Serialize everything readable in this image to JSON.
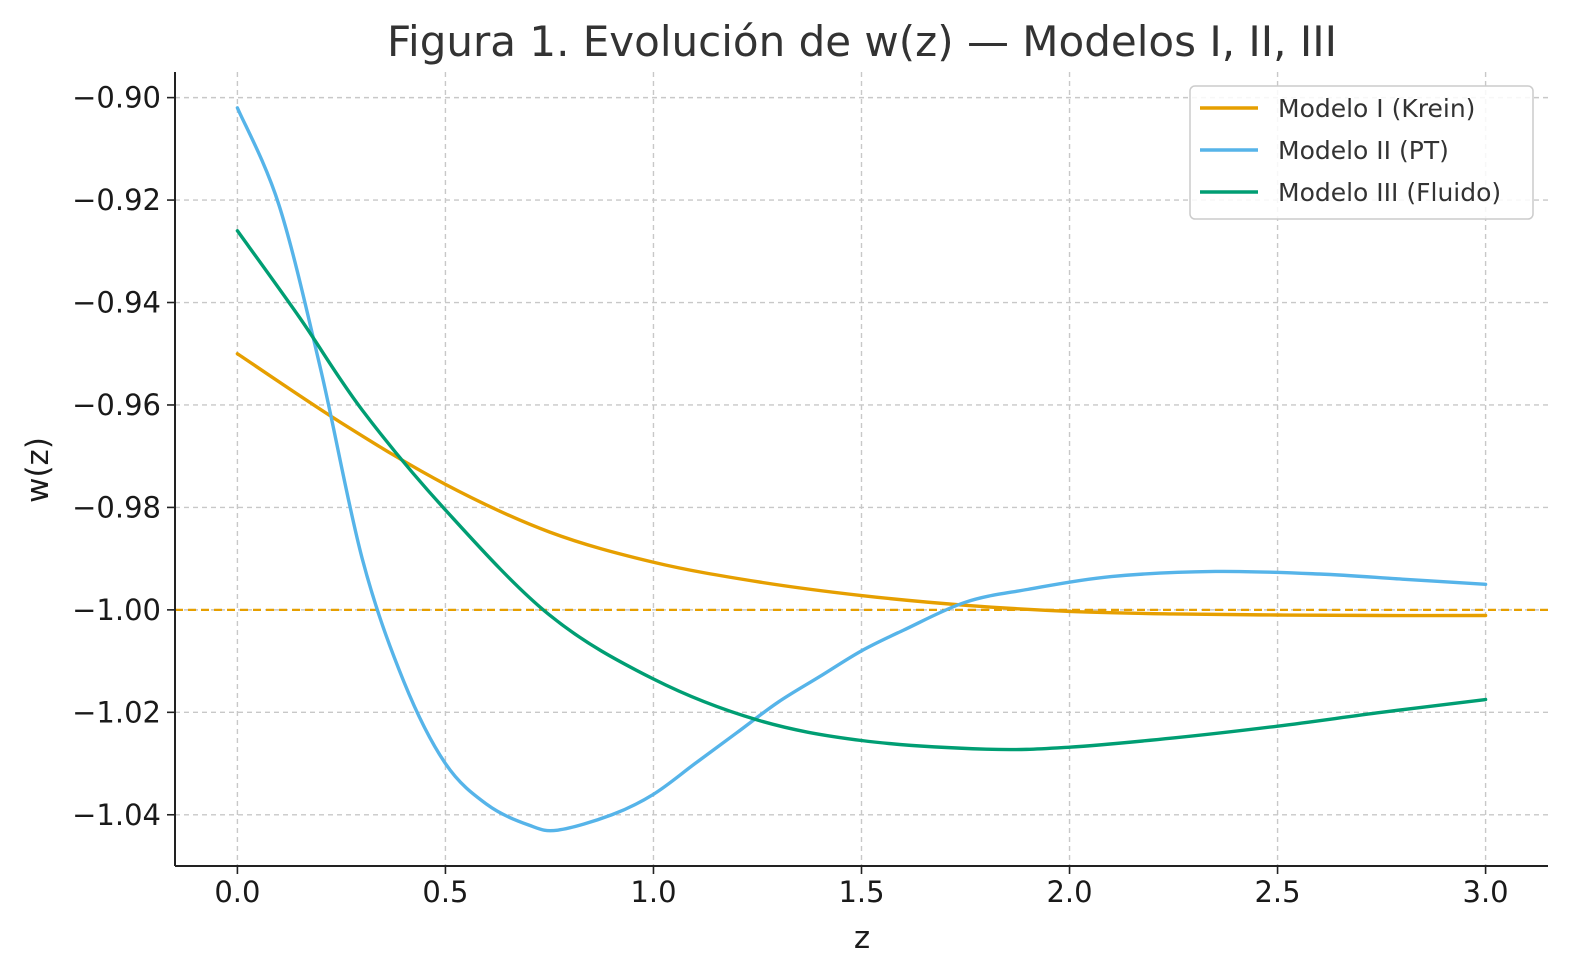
{
  "chart_data": {
    "type": "line",
    "title": "Figura 1. Evolución de w(z) — Modelos I, II, III",
    "xlabel": "z",
    "ylabel": "w(z)",
    "xlim": [
      -0.15,
      3.15
    ],
    "ylim": [
      -1.05,
      -0.895
    ],
    "xticks": [
      0.0,
      0.5,
      1.0,
      1.5,
      2.0,
      2.5,
      3.0
    ],
    "xtick_labels": [
      "0.0",
      "0.5",
      "1.0",
      "1.5",
      "2.0",
      "2.5",
      "3.0"
    ],
    "yticks": [
      -0.9,
      -0.92,
      -0.94,
      -0.96,
      -0.98,
      -1.0,
      -1.02,
      -1.04
    ],
    "ytick_labels": [
      "−0.90",
      "−0.92",
      "−0.94",
      "−0.96",
      "−0.98",
      "−1.00",
      "−1.02",
      "−1.04"
    ],
    "grid": true,
    "legend_position": "top-right",
    "reference_line": {
      "y": -1.0,
      "color": "#E69F00",
      "style": "dashed"
    },
    "series": [
      {
        "name": "Modelo I (Krein)",
        "color": "#E69F00",
        "x": [
          0.0,
          0.25,
          0.5,
          0.75,
          1.0,
          1.25,
          1.5,
          1.75,
          2.0,
          2.25,
          2.5,
          2.75,
          3.0
        ],
        "y": [
          -0.95,
          -0.9635,
          -0.9755,
          -0.9848,
          -0.9907,
          -0.9945,
          -0.9972,
          -0.9991,
          -1.0003,
          -1.0008,
          -1.001,
          -1.0011,
          -1.0011
        ]
      },
      {
        "name": "Modelo II (PT)",
        "color": "#56B4E9",
        "x": [
          0.0,
          0.1,
          0.2,
          0.3,
          0.4,
          0.5,
          0.6,
          0.7,
          0.77,
          0.9,
          1.0,
          1.1,
          1.2,
          1.3,
          1.4,
          1.5,
          1.6,
          1.75,
          1.9,
          2.1,
          2.35,
          2.6,
          2.8,
          3.0
        ],
        "y": [
          -0.902,
          -0.921,
          -0.953,
          -0.99,
          -1.014,
          -1.03,
          -1.038,
          -1.042,
          -1.043,
          -1.04,
          -1.036,
          -1.03,
          -1.024,
          -1.018,
          -1.013,
          -1.008,
          -1.004,
          -0.9985,
          -0.996,
          -0.9935,
          -0.9925,
          -0.993,
          -0.994,
          -0.995
        ]
      },
      {
        "name": "Modelo III (Fluido)",
        "color": "#009E73",
        "x": [
          0.0,
          0.15,
          0.3,
          0.5,
          0.75,
          1.0,
          1.25,
          1.5,
          1.8,
          2.0,
          2.25,
          2.5,
          2.75,
          3.0
        ],
        "y": [
          -0.926,
          -0.943,
          -0.961,
          -0.9805,
          -1.001,
          -1.0135,
          -1.0215,
          -1.0255,
          -1.0272,
          -1.0268,
          -1.025,
          -1.0227,
          -1.02,
          -1.0175
        ]
      }
    ]
  }
}
